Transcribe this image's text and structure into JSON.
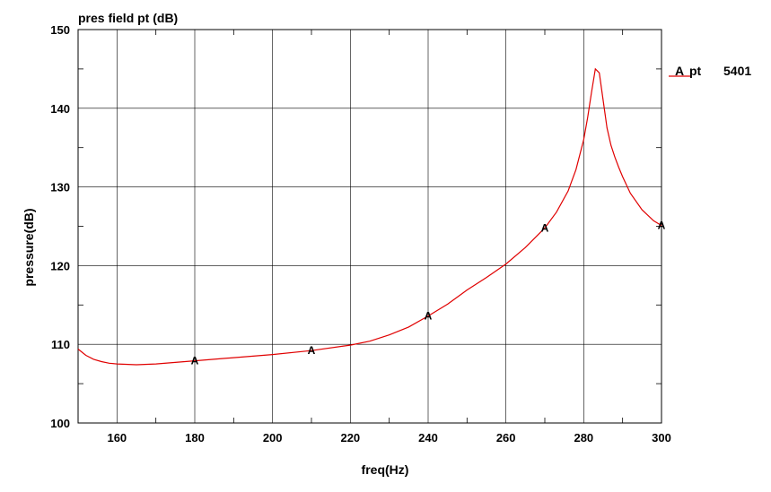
{
  "chart_data": {
    "type": "line",
    "title": "pres field pt (dB)",
    "xlabel": "freq(Hz)",
    "ylabel": "pressure(dB)",
    "xlim": [
      150,
      300
    ],
    "ylim": [
      100,
      150
    ],
    "x_ticks": [
      160,
      180,
      200,
      220,
      240,
      260,
      280,
      300
    ],
    "y_ticks": [
      100,
      110,
      120,
      130,
      140,
      150
    ],
    "grid": true,
    "legend_position": "right",
    "series": [
      {
        "name": "pt",
        "marker_label": "A",
        "legend_value": "5401",
        "color": "#e00000",
        "x": [
          150,
          152,
          154,
          156,
          158,
          160,
          165,
          170,
          175,
          180,
          190,
          200,
          210,
          220,
          225,
          230,
          235,
          240,
          245,
          250,
          255,
          260,
          265,
          270,
          273,
          276,
          278,
          280,
          281,
          282,
          283,
          284,
          285,
          286,
          287,
          288,
          289,
          290,
          292,
          295,
          298,
          300
        ],
        "y": [
          109.4,
          108.6,
          108.1,
          107.8,
          107.6,
          107.5,
          107.4,
          107.5,
          107.7,
          107.9,
          108.3,
          108.7,
          109.2,
          109.9,
          110.4,
          111.2,
          112.2,
          113.6,
          115.1,
          116.9,
          118.5,
          120.2,
          122.3,
          124.8,
          126.8,
          129.5,
          132.2,
          136.0,
          138.8,
          142.0,
          145.0,
          144.5,
          141.0,
          137.5,
          135.3,
          133.8,
          132.5,
          131.3,
          129.2,
          127.1,
          125.7,
          125.1
        ],
        "markers_x": [
          180,
          210,
          240,
          270,
          300
        ]
      }
    ]
  }
}
